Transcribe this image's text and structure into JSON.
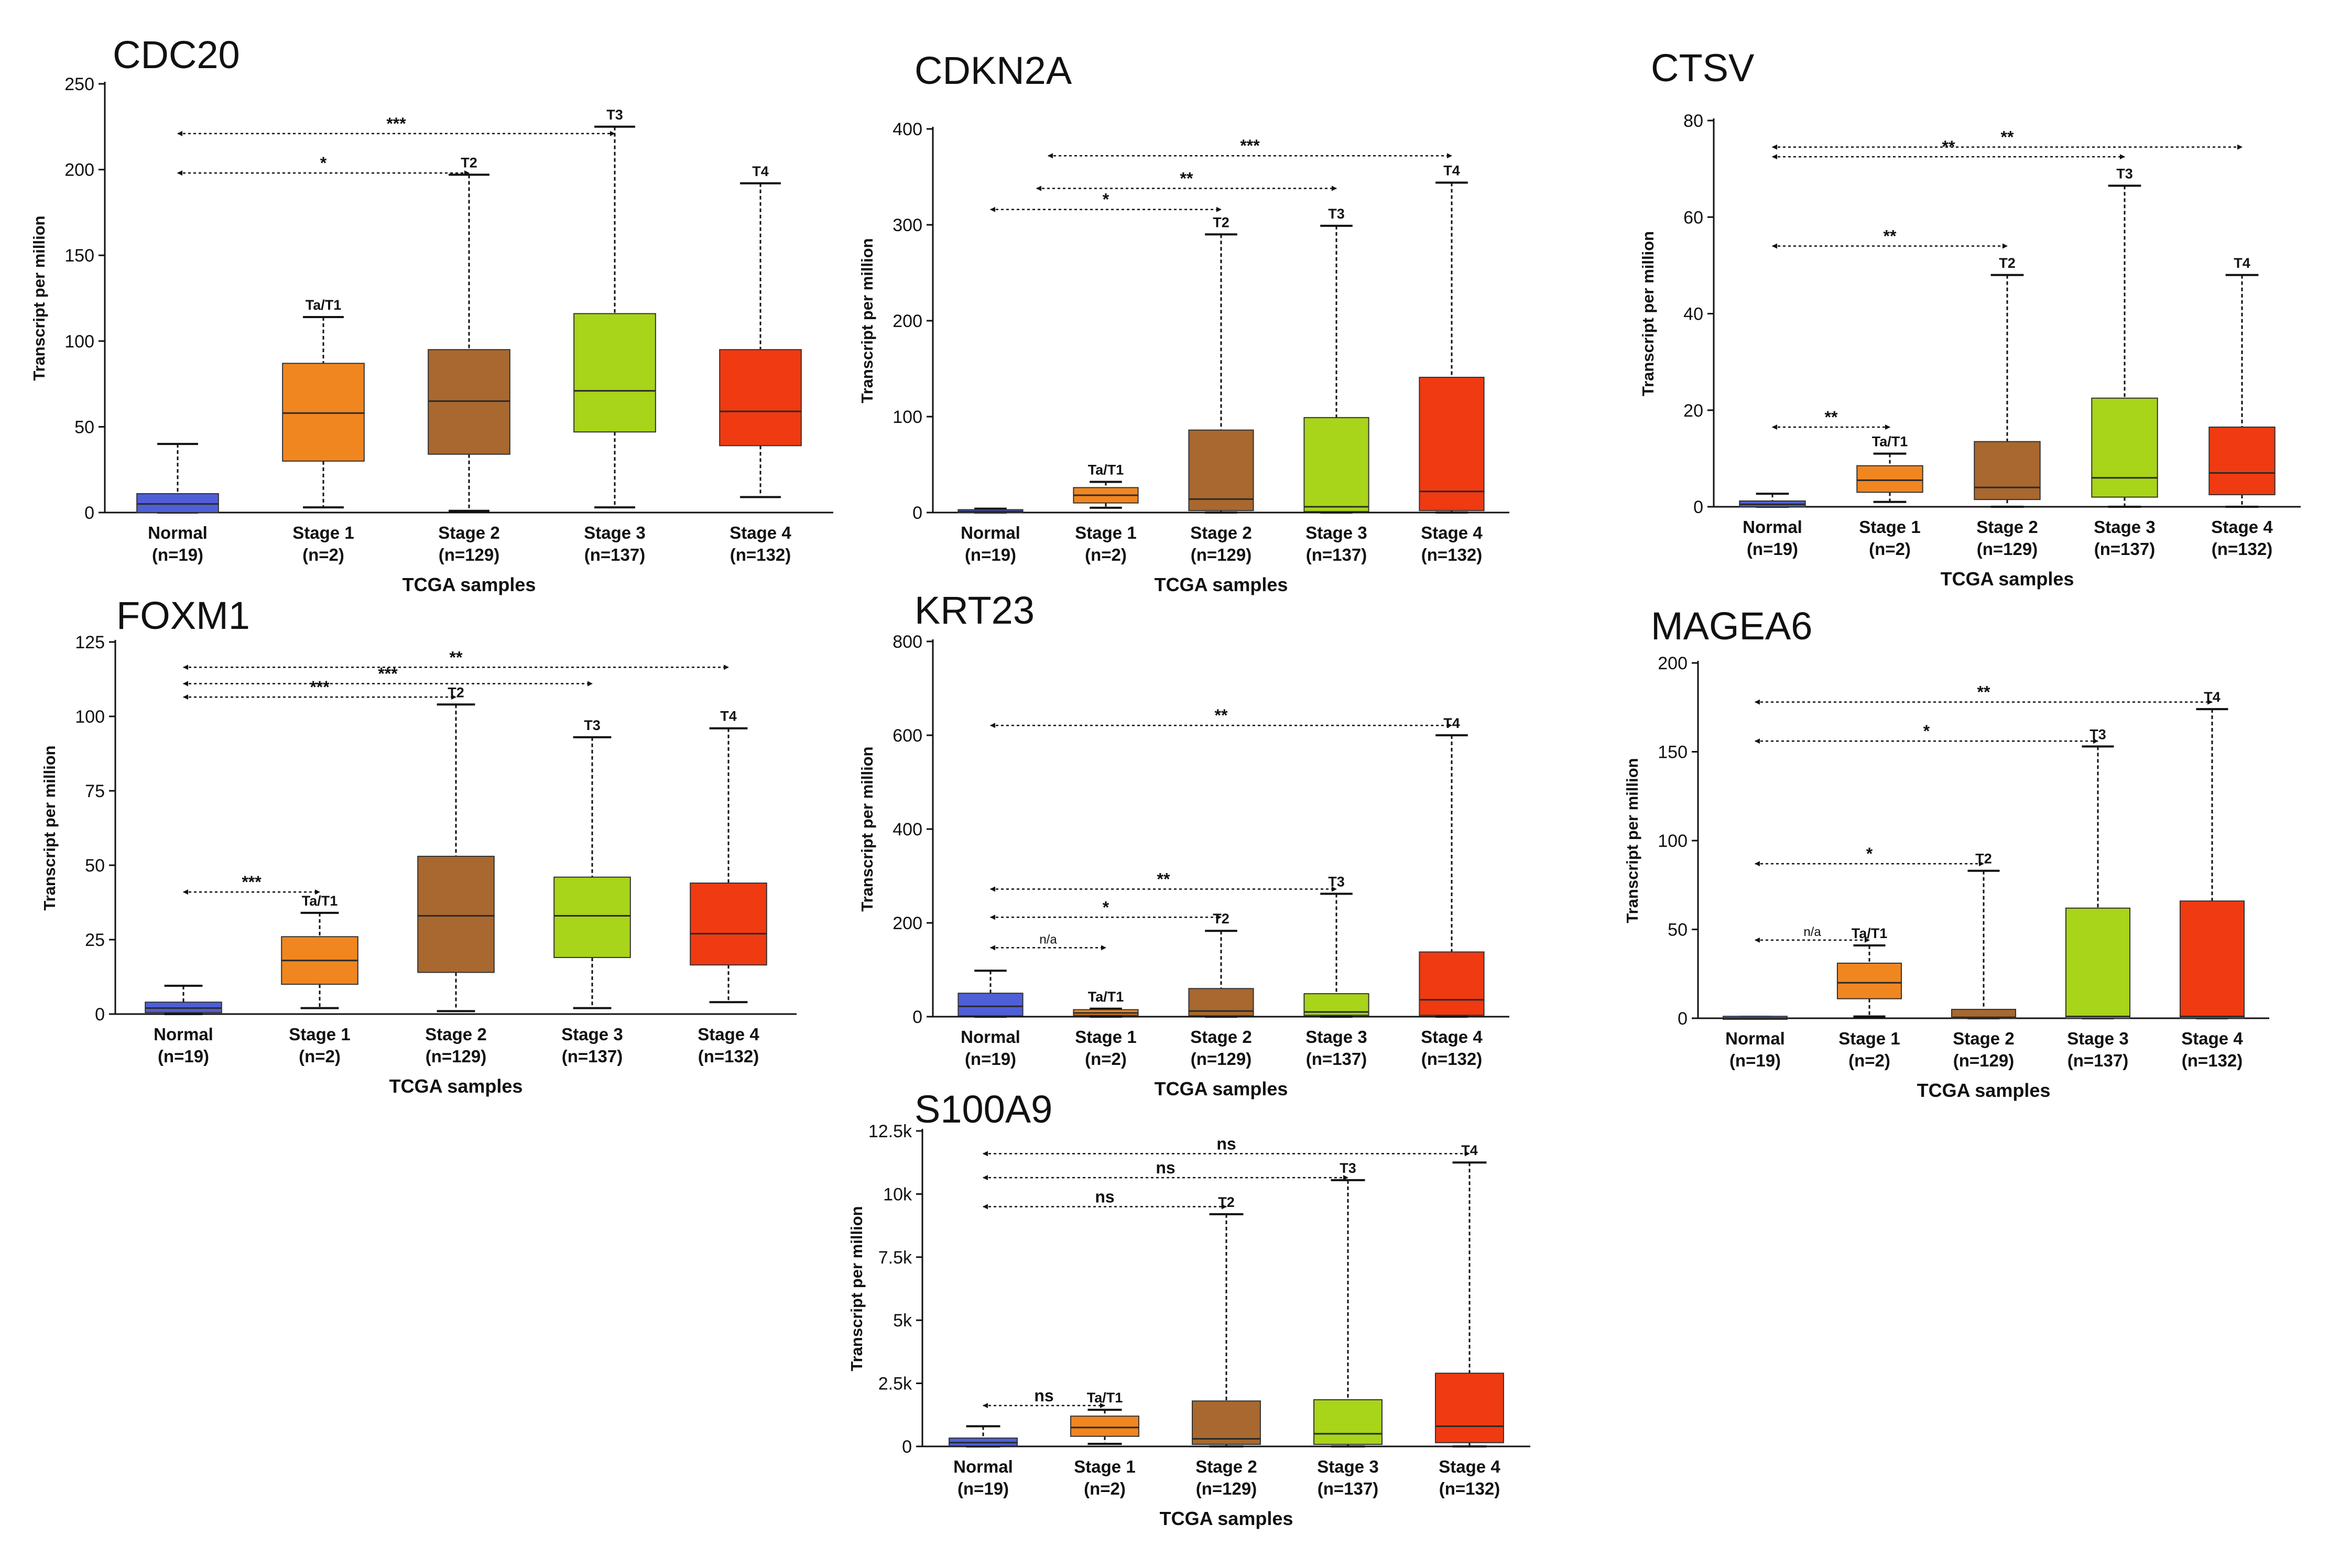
{
  "chart_data": [
    {
      "type": "box",
      "title": "CDC20",
      "ylabel": "Transcript per million",
      "xlabel": "TCGA samples",
      "categories": [
        "Normal",
        "Stage 1",
        "Stage 2",
        "Stage 3",
        "Stage 4"
      ],
      "counts": [
        "(n=19)",
        "(n=2)",
        "(n=129)",
        "(n=137)",
        "(n=132)"
      ],
      "ylim": [
        0,
        250
      ],
      "yticks": [
        0,
        50,
        100,
        150,
        200,
        250
      ],
      "ytick_labels": [
        "0",
        "50",
        "100",
        "150",
        "200",
        "250"
      ],
      "boxes": [
        {
          "min": 0,
          "q1": 0,
          "median": 5,
          "q3": 11,
          "max": 40,
          "top_label": ""
        },
        {
          "min": 3,
          "q1": 30,
          "median": 58,
          "q3": 87,
          "max": 114,
          "top_label": "Ta/T1"
        },
        {
          "min": 1,
          "q1": 34,
          "median": 65,
          "q3": 95,
          "max": 197,
          "top_label": "T2"
        },
        {
          "min": 3,
          "q1": 47,
          "median": 71,
          "q3": 116,
          "max": 225,
          "top_label": "T3"
        },
        {
          "min": 9,
          "q1": 39,
          "median": 59,
          "q3": 95,
          "max": 192,
          "top_label": "T4"
        }
      ],
      "significance": [
        {
          "from": 0,
          "to": 3,
          "y": 221,
          "label": "***"
        },
        {
          "from": 0,
          "to": 2,
          "y": 198,
          "label": "*"
        }
      ]
    },
    {
      "type": "box",
      "title": "CDKN2A",
      "ylabel": "Transcript per million",
      "xlabel": "TCGA samples",
      "categories": [
        "Normal",
        "Stage 1",
        "Stage 2",
        "Stage 3",
        "Stage 4"
      ],
      "counts": [
        "(n=19)",
        "(n=2)",
        "(n=129)",
        "(n=137)",
        "(n=132)"
      ],
      "ylim": [
        0,
        400
      ],
      "yticks": [
        0,
        100,
        200,
        300,
        400
      ],
      "ytick_labels": [
        "0",
        "100",
        "200",
        "300",
        "400"
      ],
      "boxes": [
        {
          "min": 0,
          "q1": 0,
          "median": 1,
          "q3": 3,
          "max": 4,
          "top_label": ""
        },
        {
          "min": 5,
          "q1": 10,
          "median": 18,
          "q3": 26,
          "max": 32,
          "top_label": "Ta/T1"
        },
        {
          "min": 0,
          "q1": 2,
          "median": 14,
          "q3": 86,
          "max": 290,
          "top_label": "T2"
        },
        {
          "min": 0,
          "q1": 1,
          "median": 6,
          "q3": 99,
          "max": 299,
          "top_label": "T3"
        },
        {
          "min": 0,
          "q1": 2,
          "median": 22,
          "q3": 141,
          "max": 344,
          "top_label": "T4"
        }
      ],
      "significance": [
        {
          "from": 0.5,
          "to": 4,
          "y": 372,
          "label": "***"
        },
        {
          "from": 0.4,
          "to": 3,
          "y": 338,
          "label": "**"
        },
        {
          "from": 0,
          "to": 2,
          "y": 316,
          "label": "*"
        }
      ]
    },
    {
      "type": "box",
      "title": "CTSV",
      "ylabel": "Transcript per million",
      "xlabel": "TCGA samples",
      "categories": [
        "Normal",
        "Stage 1",
        "Stage 2",
        "Stage 3",
        "Stage 4"
      ],
      "counts": [
        "(n=19)",
        "(n=2)",
        "(n=129)",
        "(n=137)",
        "(n=132)"
      ],
      "ylim": [
        0,
        80
      ],
      "yticks": [
        0,
        20,
        40,
        60,
        80
      ],
      "ytick_labels": [
        "0",
        "20",
        "40",
        "60",
        "80"
      ],
      "boxes": [
        {
          "min": 0,
          "q1": 0,
          "median": 0.5,
          "q3": 1.2,
          "max": 2.7,
          "top_label": ""
        },
        {
          "min": 1,
          "q1": 3,
          "median": 5.5,
          "q3": 8.5,
          "max": 11,
          "top_label": "Ta/T1"
        },
        {
          "min": 0,
          "q1": 1.5,
          "median": 4,
          "q3": 13.5,
          "max": 48,
          "top_label": "T2"
        },
        {
          "min": 0,
          "q1": 2,
          "median": 6,
          "q3": 22.5,
          "max": 66.5,
          "top_label": "T3"
        },
        {
          "min": 0,
          "q1": 2.5,
          "median": 7,
          "q3": 16.5,
          "max": 48,
          "top_label": "T4"
        }
      ],
      "significance": [
        {
          "from": 0,
          "to": 4,
          "y": 74.5,
          "label": "**"
        },
        {
          "from": 0,
          "to": 3,
          "y": 72.5,
          "label": "**"
        },
        {
          "from": 0,
          "to": 2,
          "y": 54,
          "label": "**"
        },
        {
          "from": 0,
          "to": 1,
          "y": 16.5,
          "label": "**"
        }
      ]
    },
    {
      "type": "box",
      "title": "FOXM1",
      "ylabel": "Transcript per million",
      "xlabel": "TCGA samples",
      "categories": [
        "Normal",
        "Stage 1",
        "Stage 2",
        "Stage 3",
        "Stage 4"
      ],
      "counts": [
        "(n=19)",
        "(n=2)",
        "(n=129)",
        "(n=137)",
        "(n=132)"
      ],
      "ylim": [
        0,
        125
      ],
      "yticks": [
        0,
        25,
        50,
        75,
        100,
        125
      ],
      "ytick_labels": [
        "0",
        "25",
        "50",
        "75",
        "100",
        "125"
      ],
      "boxes": [
        {
          "min": 0,
          "q1": 0.5,
          "median": 2,
          "q3": 4,
          "max": 9.5,
          "top_label": ""
        },
        {
          "min": 2,
          "q1": 10,
          "median": 18,
          "q3": 26,
          "max": 34,
          "top_label": "Ta/T1"
        },
        {
          "min": 1,
          "q1": 14,
          "median": 33,
          "q3": 53,
          "max": 104,
          "top_label": "T2"
        },
        {
          "min": 2,
          "q1": 19,
          "median": 33,
          "q3": 46,
          "max": 93,
          "top_label": "T3"
        },
        {
          "min": 4,
          "q1": 16.5,
          "median": 27,
          "q3": 44,
          "max": 96,
          "top_label": "T4"
        }
      ],
      "significance": [
        {
          "from": 0,
          "to": 4,
          "y": 116.5,
          "label": "**"
        },
        {
          "from": 0,
          "to": 3,
          "y": 111,
          "label": "***"
        },
        {
          "from": 0,
          "to": 2,
          "y": 106.5,
          "label": "***"
        },
        {
          "from": 0,
          "to": 1,
          "y": 41,
          "label": "***"
        }
      ]
    },
    {
      "type": "box",
      "title": "KRT23",
      "ylabel": "Transcript per million",
      "xlabel": "TCGA samples",
      "categories": [
        "Normal",
        "Stage 1",
        "Stage 2",
        "Stage 3",
        "Stage 4"
      ],
      "counts": [
        "(n=19)",
        "(n=2)",
        "(n=129)",
        "(n=137)",
        "(n=132)"
      ],
      "ylim": [
        0,
        800
      ],
      "yticks": [
        0,
        200,
        400,
        600,
        800
      ],
      "ytick_labels": [
        "0",
        "200",
        "400",
        "600",
        "800"
      ],
      "boxes": [
        {
          "min": 0,
          "q1": 2,
          "median": 22,
          "q3": 50,
          "max": 98,
          "top_label": ""
        },
        {
          "min": 0,
          "q1": 3,
          "median": 8,
          "q3": 15,
          "max": 17,
          "top_label": "Ta/T1"
        },
        {
          "min": 0,
          "q1": 2,
          "median": 12,
          "q3": 60,
          "max": 183,
          "top_label": "T2"
        },
        {
          "min": 0,
          "q1": 3,
          "median": 10,
          "q3": 49,
          "max": 262,
          "top_label": "T3"
        },
        {
          "min": 0,
          "q1": 3,
          "median": 36,
          "q3": 138,
          "max": 600,
          "top_label": "T4"
        }
      ],
      "significance": [
        {
          "from": 0,
          "to": 4,
          "y": 621,
          "label": "**"
        },
        {
          "from": 0,
          "to": 3,
          "y": 272,
          "label": "**"
        },
        {
          "from": 0,
          "to": 2,
          "y": 212,
          "label": "*"
        },
        {
          "from": 0,
          "to": 1,
          "y": 147,
          "label": "n/a"
        }
      ]
    },
    {
      "type": "box",
      "title": "MAGEA6",
      "ylabel": "Transcript per million",
      "xlabel": "TCGA samples",
      "categories": [
        "Normal",
        "Stage 1",
        "Stage 2",
        "Stage 3",
        "Stage 4"
      ],
      "counts": [
        "(n=19)",
        "(n=2)",
        "(n=129)",
        "(n=137)",
        "(n=132)"
      ],
      "ylim": [
        0,
        200
      ],
      "yticks": [
        0,
        50,
        100,
        150,
        200
      ],
      "ytick_labels": [
        "0",
        "50",
        "100",
        "150",
        "200"
      ],
      "boxes": [
        {
          "min": 0,
          "q1": 0,
          "median": 0,
          "q3": 0.5,
          "max": 0.8,
          "top_label": ""
        },
        {
          "min": 1,
          "q1": 11,
          "median": 20,
          "q3": 31,
          "max": 41,
          "top_label": "Ta/T1"
        },
        {
          "min": 0,
          "q1": 0,
          "median": 0.5,
          "q3": 5,
          "max": 83,
          "top_label": "T2"
        },
        {
          "min": 0,
          "q1": 0,
          "median": 1,
          "q3": 62,
          "max": 153,
          "top_label": "T3"
        },
        {
          "min": 0,
          "q1": 0,
          "median": 1,
          "q3": 66,
          "max": 174,
          "top_label": "T4"
        }
      ],
      "significance": [
        {
          "from": 0,
          "to": 4,
          "y": 178,
          "label": "**"
        },
        {
          "from": 0,
          "to": 3,
          "y": 156,
          "label": "*"
        },
        {
          "from": 0,
          "to": 2,
          "y": 87,
          "label": "*"
        },
        {
          "from": 0,
          "to": 1,
          "y": 44,
          "label": "n/a"
        }
      ]
    },
    {
      "type": "box",
      "title": "S100A9",
      "ylabel": "Transcript per million",
      "xlabel": "TCGA samples",
      "categories": [
        "Normal",
        "Stage 1",
        "Stage 2",
        "Stage 3",
        "Stage 4"
      ],
      "counts": [
        "(n=19)",
        "(n=2)",
        "(n=129)",
        "(n=137)",
        "(n=132)"
      ],
      "ylim": [
        0,
        12500
      ],
      "yticks": [
        0,
        2500,
        5000,
        7500,
        10000,
        12500
      ],
      "ytick_labels": [
        "0",
        "2.5k",
        "5k",
        "7.5k",
        "10k",
        "12.5k"
      ],
      "boxes": [
        {
          "min": 0,
          "q1": 20,
          "median": 150,
          "q3": 330,
          "max": 800,
          "top_label": ""
        },
        {
          "min": 100,
          "q1": 400,
          "median": 750,
          "q3": 1200,
          "max": 1450,
          "top_label": "Ta/T1"
        },
        {
          "min": 0,
          "q1": 80,
          "median": 300,
          "q3": 1800,
          "max": 9200,
          "top_label": "T2"
        },
        {
          "min": 0,
          "q1": 80,
          "median": 500,
          "q3": 1850,
          "max": 10550,
          "top_label": "T3"
        },
        {
          "min": 0,
          "q1": 150,
          "median": 800,
          "q3": 2900,
          "max": 11250,
          "top_label": "T4"
        }
      ],
      "significance": [
        {
          "from": 0,
          "to": 4,
          "y": 11600,
          "label": "ns"
        },
        {
          "from": 0,
          "to": 3,
          "y": 10650,
          "label": "ns"
        },
        {
          "from": 0,
          "to": 2,
          "y": 9500,
          "label": "ns"
        },
        {
          "from": 0,
          "to": 1,
          "y": 1620,
          "label": "ns"
        }
      ]
    }
  ],
  "colors": {
    "normal": "#4f5fd8",
    "stage1": "#f08620",
    "stage2": "#a8682f",
    "stage3": "#a8d41a",
    "stage4": "#ef3a12",
    "median": "#2a2a2a",
    "axis": "#111111"
  }
}
